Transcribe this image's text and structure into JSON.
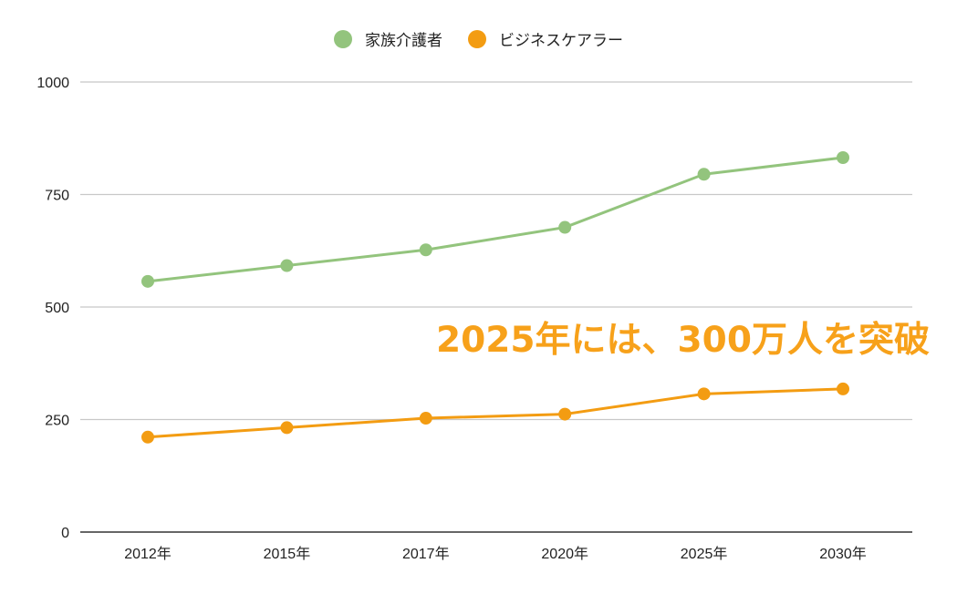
{
  "chart_data": {
    "type": "line",
    "title": "",
    "xlabel": "",
    "ylabel": "",
    "categories": [
      "2012年",
      "2015年",
      "2017年",
      "2020年",
      "2025年",
      "2030年"
    ],
    "ylim": [
      0,
      1000
    ],
    "yticks": [
      0,
      250,
      500,
      750,
      1000
    ],
    "y_tick_labels": [
      "0",
      "250",
      "500",
      "750",
      "1000"
    ],
    "grid": true,
    "legend_position": "top-center",
    "series": [
      {
        "name": "家族介護者",
        "color": "#93c47d",
        "values": [
          557,
          592,
          627,
          677,
          795,
          832
        ]
      },
      {
        "name": "ビジネスケアラー",
        "color": "#f39c12",
        "values": [
          211,
          232,
          253,
          262,
          307,
          318
        ]
      }
    ],
    "annotation": {
      "text": "2025年には、300万人を突破",
      "color": "#f7a11a"
    }
  }
}
